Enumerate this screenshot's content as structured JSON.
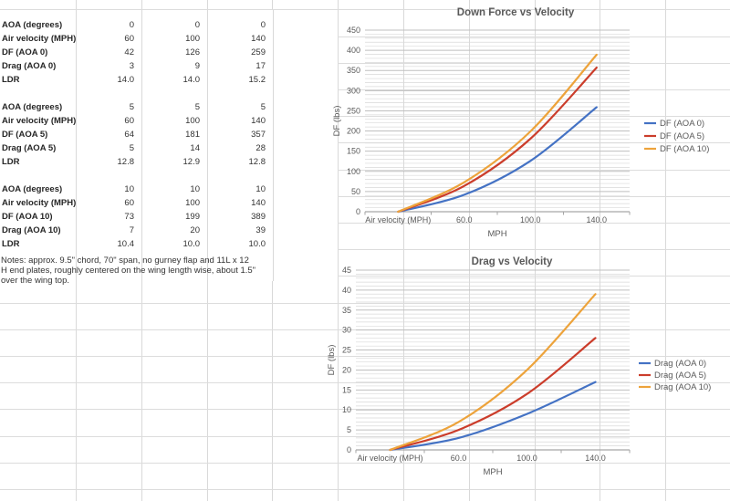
{
  "sheet": {
    "table": {
      "blocks": [
        {
          "rows": [
            {
              "label": "AOA (degrees)",
              "values": [
                "0",
                "0",
                "0"
              ]
            },
            {
              "label": "Air velocity (MPH)",
              "values": [
                "60",
                "100",
                "140"
              ]
            },
            {
              "label": "DF (AOA 0)",
              "values": [
                "42",
                "126",
                "259"
              ]
            },
            {
              "label": "Drag (AOA 0)",
              "values": [
                "3",
                "9",
                "17"
              ]
            },
            {
              "label": "LDR",
              "values": [
                "14.0",
                "14.0",
                "15.2"
              ]
            }
          ]
        },
        {
          "rows": [
            {
              "label": "AOA (degrees)",
              "values": [
                "5",
                "5",
                "5"
              ]
            },
            {
              "label": "Air velocity (MPH)",
              "values": [
                "60",
                "100",
                "140"
              ]
            },
            {
              "label": "DF (AOA 5)",
              "values": [
                "64",
                "181",
                "357"
              ]
            },
            {
              "label": "Drag (AOA 5)",
              "values": [
                "5",
                "14",
                "28"
              ]
            },
            {
              "label": "LDR",
              "values": [
                "12.8",
                "12.9",
                "12.8"
              ]
            }
          ]
        },
        {
          "rows": [
            {
              "label": "AOA (degrees)",
              "values": [
                "10",
                "10",
                "10"
              ]
            },
            {
              "label": "Air velocity (MPH)",
              "values": [
                "60",
                "100",
                "140"
              ]
            },
            {
              "label": "DF (AOA 10)",
              "values": [
                "73",
                "199",
                "389"
              ]
            },
            {
              "label": "Drag (AOA 10)",
              "values": [
                "7",
                "20",
                "39"
              ]
            },
            {
              "label": "LDR",
              "values": [
                "10.4",
                "10.0",
                "10.0"
              ]
            }
          ]
        }
      ],
      "notes_lines": [
        "Notes: approx. 9.5\" chord, 70\" span, no gurney flap and 11L x 12",
        "H end plates, roughly centered on the wing length wise, about 1.5\"",
        "over the wing top."
      ]
    }
  },
  "chart_data": [
    {
      "type": "line",
      "title": "Down Force vs Velocity",
      "categories": [
        "Air velocity (MPH)",
        "60.0",
        "100.0",
        "140.0"
      ],
      "series": [
        {
          "name": "DF (AOA 0)",
          "color": "#4472C4",
          "values": [
            0,
            42,
            126,
            259
          ]
        },
        {
          "name": "DF (AOA 5)",
          "color": "#CB3D2B",
          "values": [
            0,
            64,
            181,
            357
          ]
        },
        {
          "name": "DF (AOA 10)",
          "color": "#EDA33B",
          "values": [
            0,
            73,
            199,
            389
          ]
        }
      ],
      "xlabel": "MPH",
      "ylabel": "DF (lbs)",
      "ylim": [
        0,
        450
      ],
      "ytick_step": 50,
      "yminor_step": 10,
      "grid": true,
      "legend_position": "right",
      "smooth_lines": true
    },
    {
      "type": "line",
      "title": "Drag vs Velocity",
      "categories": [
        "Air velocity (MPH)",
        "60.0",
        "100.0",
        "140.0"
      ],
      "series": [
        {
          "name": "Drag (AOA 0)",
          "color": "#4472C4",
          "values": [
            0,
            3,
            9,
            17
          ]
        },
        {
          "name": "Drag (AOA 5)",
          "color": "#CB3D2B",
          "values": [
            0,
            5,
            14,
            28
          ]
        },
        {
          "name": "Drag (AOA 10)",
          "color": "#EDA33B",
          "values": [
            0,
            7,
            20,
            39
          ]
        }
      ],
      "xlabel": "MPH",
      "ylabel": "DF (lbs)",
      "ylim": [
        0,
        45
      ],
      "ytick_step": 5,
      "yminor_step": 1,
      "grid": true,
      "legend_position": "right",
      "smooth_lines": true
    }
  ],
  "colors": {
    "axis_text": "#595959",
    "grid_minor": "#d9d9d9",
    "grid_major": "#bfbfbf",
    "axis_line": "#a6a6a6"
  }
}
